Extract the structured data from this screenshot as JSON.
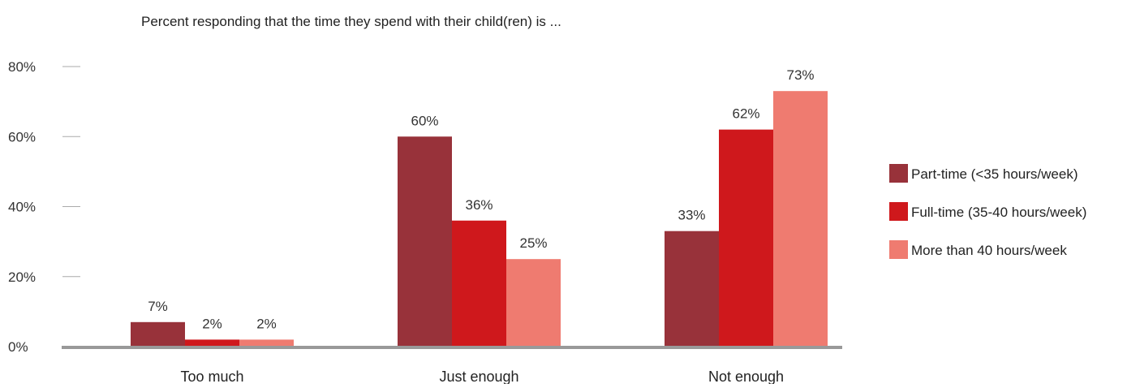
{
  "chart_data": {
    "type": "bar",
    "title": "Percent responding that the time they spend with their child(ren) is ...",
    "xlabel": "",
    "ylabel": "",
    "categories": [
      "Too much",
      "Just enough",
      "Not enough"
    ],
    "series": [
      {
        "name": "Part-time (<35 hours/week)",
        "color": "#98323a",
        "values": [
          7,
          60,
          33
        ],
        "labels": [
          "7%",
          "60%",
          "33%"
        ]
      },
      {
        "name": "Full-time (35-40 hours/week)",
        "color": "#cf181c",
        "values": [
          2,
          36,
          62
        ],
        "labels": [
          "2%",
          "36%",
          "62%"
        ]
      },
      {
        "name": "More than 40 hours/week",
        "color": "#ef7b70",
        "values": [
          2,
          25,
          73
        ],
        "labels": [
          "2%",
          "25%",
          "73%"
        ]
      }
    ],
    "ylim": [
      0,
      80
    ],
    "yticks": [
      {
        "value": 0,
        "label": "0%"
      },
      {
        "value": 20,
        "label": "20%"
      },
      {
        "value": 40,
        "label": "40%"
      },
      {
        "value": 60,
        "label": "60%"
      },
      {
        "value": 80,
        "label": "80%"
      }
    ],
    "grid": false,
    "legend_position": "right",
    "axis_color": "#999999",
    "tick_mark_color": "#aaaaaa"
  }
}
